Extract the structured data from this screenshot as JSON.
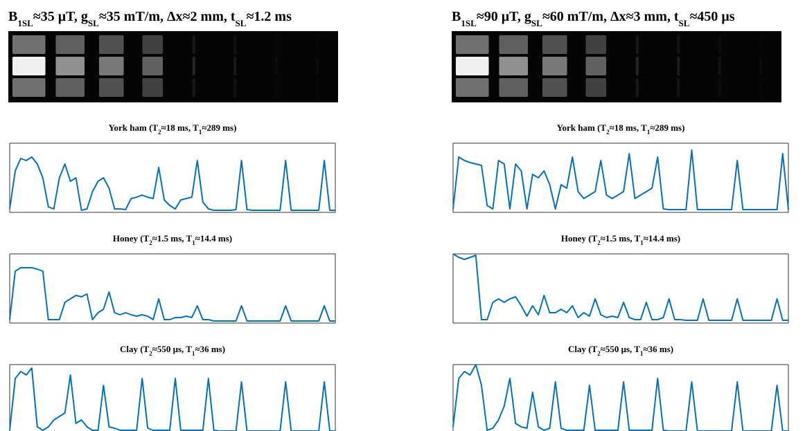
{
  "headers": [
    [
      "B",
      "1SL",
      "≈35 μT,  g",
      "SL",
      "≈35 mT/m,  Δx≈2 mm,  t",
      "SL",
      "≈1.2 ms"
    ],
    [
      "B",
      "1SL",
      "≈90 μT,  g",
      "SL",
      "≈60 mT/m,  Δx≈3 mm,  t",
      "SL",
      "≈450 μs"
    ]
  ],
  "chart_data": [
    {
      "type": "line",
      "title": [
        "York ham (T",
        "2",
        "≈18 ms, T",
        "1",
        "≈289 ms)"
      ],
      "color": "#0072bd",
      "ylim": [
        0,
        100
      ],
      "values": [
        5,
        60,
        78,
        75,
        80,
        70,
        50,
        8,
        5,
        50,
        70,
        45,
        50,
        3,
        5,
        30,
        45,
        50,
        35,
        5,
        5,
        4,
        20,
        22,
        25,
        22,
        20,
        65,
        18,
        10,
        5,
        18,
        20,
        22,
        75,
        15,
        5,
        3,
        3,
        3,
        3,
        4,
        75,
        4,
        3,
        3,
        3,
        3,
        3,
        3,
        75,
        3,
        3,
        3,
        3,
        3,
        3,
        75,
        3,
        3
      ]
    },
    {
      "type": "line",
      "title": [
        "York ham (T",
        "2",
        "≈18 ms, T",
        "1",
        "≈289 ms)"
      ],
      "color": "#0072bd",
      "ylim": [
        0,
        100
      ],
      "values": [
        5,
        80,
        75,
        72,
        70,
        68,
        10,
        5,
        75,
        70,
        5,
        70,
        60,
        5,
        55,
        50,
        60,
        40,
        5,
        40,
        35,
        80,
        30,
        20,
        25,
        30,
        75,
        25,
        20,
        25,
        30,
        85,
        20,
        25,
        30,
        35,
        80,
        5,
        4,
        4,
        4,
        4,
        90,
        4,
        4,
        4,
        4,
        4,
        4,
        4,
        75,
        4,
        4,
        4,
        4,
        4,
        4,
        4,
        85,
        4
      ]
    },
    {
      "type": "line",
      "title": [
        "Honey (T",
        "2",
        "≈1.5 ms, T",
        "1",
        "≈14.4 ms)"
      ],
      "color": "#0072bd",
      "ylim": [
        0,
        100
      ],
      "values": [
        5,
        75,
        80,
        80,
        80,
        78,
        75,
        5,
        5,
        5,
        30,
        35,
        40,
        38,
        42,
        5,
        15,
        20,
        45,
        15,
        12,
        15,
        12,
        10,
        12,
        10,
        5,
        35,
        5,
        5,
        8,
        8,
        10,
        8,
        25,
        5,
        5,
        3,
        3,
        3,
        3,
        3,
        25,
        3,
        3,
        3,
        3,
        3,
        3,
        3,
        25,
        3,
        3,
        3,
        3,
        3,
        3,
        25,
        3,
        3
      ]
    },
    {
      "type": "line",
      "title": [
        "Honey (T",
        "2",
        "≈1.5 ms, T",
        "1",
        "≈14.4 ms)"
      ],
      "color": "#0072bd",
      "ylim": [
        0,
        100
      ],
      "values": [
        100,
        95,
        92,
        95,
        98,
        5,
        5,
        30,
        35,
        30,
        35,
        38,
        25,
        10,
        25,
        12,
        40,
        15,
        15,
        20,
        15,
        25,
        8,
        15,
        10,
        35,
        12,
        8,
        10,
        8,
        30,
        8,
        5,
        5,
        30,
        5,
        5,
        8,
        35,
        5,
        5,
        4,
        4,
        4,
        35,
        4,
        4,
        4,
        4,
        4,
        35,
        4,
        4,
        4,
        4,
        4,
        4,
        35,
        4,
        4
      ]
    },
    {
      "type": "line",
      "title": [
        "Clay (T",
        "2",
        "≈550 μs, T",
        "1",
        "≈36 ms)"
      ],
      "color": "#0072bd",
      "ylim": [
        0,
        100
      ],
      "values": [
        5,
        80,
        90,
        85,
        95,
        10,
        5,
        10,
        20,
        25,
        30,
        85,
        15,
        20,
        10,
        5,
        5,
        70,
        10,
        8,
        5,
        5,
        5,
        5,
        80,
        8,
        5,
        5,
        5,
        5,
        80,
        5,
        5,
        5,
        5,
        5,
        80,
        5,
        4,
        4,
        4,
        4,
        75,
        4,
        4,
        4,
        4,
        4,
        4,
        4,
        75,
        4,
        4,
        4,
        4,
        4,
        4,
        75,
        4,
        4
      ]
    },
    {
      "type": "line",
      "title": [
        "Clay (T",
        "2",
        "≈550 μs, T",
        "1",
        "≈36 ms)"
      ],
      "color": "#0072bd",
      "ylim": [
        0,
        100
      ],
      "values": [
        10,
        80,
        90,
        85,
        100,
        70,
        5,
        8,
        20,
        40,
        80,
        15,
        10,
        8,
        60,
        10,
        5,
        8,
        75,
        8,
        5,
        5,
        5,
        5,
        70,
        5,
        5,
        5,
        5,
        5,
        75,
        5,
        5,
        5,
        5,
        5,
        80,
        5,
        4,
        4,
        4,
        4,
        75,
        4,
        4,
        4,
        4,
        4,
        4,
        4,
        75,
        4,
        4,
        4,
        4,
        4,
        4,
        70,
        4,
        4
      ]
    }
  ]
}
